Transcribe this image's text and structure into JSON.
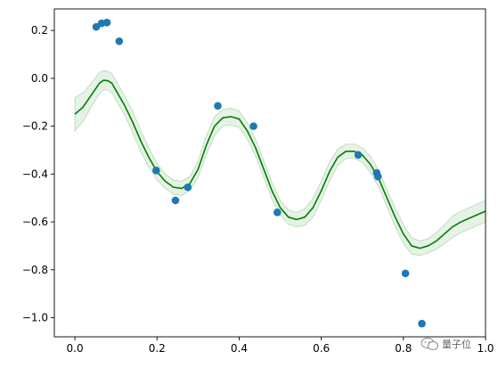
{
  "chart_data": {
    "type": "line",
    "title": "",
    "xlabel": "",
    "ylabel": "",
    "xlim": [
      -0.05,
      1.0
    ],
    "ylim": [
      -1.08,
      0.29
    ],
    "grid": false,
    "legend": "none",
    "x_ticks": [
      0.0,
      0.2,
      0.4,
      0.6,
      0.8,
      1.0
    ],
    "x_tick_labels": [
      "0.0",
      "0.2",
      "0.4",
      "0.6",
      "0.8",
      "1.0"
    ],
    "y_ticks": [
      0.2,
      0.0,
      -0.2,
      -0.4,
      -0.6,
      -0.8,
      -1.0
    ],
    "y_tick_labels": [
      "0.2",
      "0.0",
      "−0.2",
      "−0.4",
      "−0.6",
      "−0.8",
      "−1.0"
    ],
    "mean_curve": {
      "color": "#008000",
      "x": [
        0.0,
        0.02,
        0.04,
        0.06,
        0.07,
        0.08,
        0.09,
        0.1,
        0.12,
        0.14,
        0.16,
        0.18,
        0.2,
        0.22,
        0.24,
        0.26,
        0.28,
        0.3,
        0.32,
        0.34,
        0.36,
        0.38,
        0.4,
        0.42,
        0.44,
        0.46,
        0.48,
        0.5,
        0.52,
        0.54,
        0.56,
        0.58,
        0.6,
        0.62,
        0.64,
        0.66,
        0.68,
        0.7,
        0.72,
        0.74,
        0.76,
        0.78,
        0.8,
        0.82,
        0.84,
        0.86,
        0.88,
        0.9,
        0.92,
        0.94,
        0.96,
        0.98,
        1.0
      ],
      "y": [
        -0.15,
        -0.12,
        -0.07,
        -0.02,
        -0.008,
        -0.01,
        -0.02,
        -0.05,
        -0.11,
        -0.18,
        -0.26,
        -0.33,
        -0.39,
        -0.43,
        -0.455,
        -0.46,
        -0.44,
        -0.38,
        -0.28,
        -0.2,
        -0.165,
        -0.16,
        -0.17,
        -0.22,
        -0.29,
        -0.38,
        -0.47,
        -0.54,
        -0.58,
        -0.59,
        -0.58,
        -0.54,
        -0.47,
        -0.39,
        -0.33,
        -0.305,
        -0.305,
        -0.32,
        -0.36,
        -0.42,
        -0.5,
        -0.58,
        -0.65,
        -0.7,
        -0.71,
        -0.7,
        -0.68,
        -0.65,
        -0.62,
        -0.6,
        -0.585,
        -0.57,
        -0.555
      ],
      "band_halfwidth": [
        0.07,
        0.06,
        0.05,
        0.045,
        0.04,
        0.04,
        0.04,
        0.04,
        0.04,
        0.045,
        0.045,
        0.04,
        0.035,
        0.03,
        0.03,
        0.03,
        0.03,
        0.035,
        0.04,
        0.04,
        0.035,
        0.035,
        0.035,
        0.035,
        0.035,
        0.035,
        0.035,
        0.03,
        0.03,
        0.03,
        0.035,
        0.04,
        0.04,
        0.04,
        0.035,
        0.03,
        0.03,
        0.03,
        0.035,
        0.035,
        0.035,
        0.04,
        0.04,
        0.035,
        0.03,
        0.03,
        0.035,
        0.04,
        0.045,
        0.045,
        0.045,
        0.045,
        0.045
      ],
      "band_color": "#008000",
      "band_opacity": 0.1
    },
    "scatter": {
      "color": "#1f77b4",
      "points": [
        {
          "x": 0.052,
          "y": 0.215
        },
        {
          "x": 0.065,
          "y": 0.23
        },
        {
          "x": 0.078,
          "y": 0.233
        },
        {
          "x": 0.108,
          "y": 0.155
        },
        {
          "x": 0.198,
          "y": -0.385
        },
        {
          "x": 0.245,
          "y": -0.51
        },
        {
          "x": 0.275,
          "y": -0.455
        },
        {
          "x": 0.348,
          "y": -0.115
        },
        {
          "x": 0.435,
          "y": -0.2
        },
        {
          "x": 0.493,
          "y": -0.56
        },
        {
          "x": 0.69,
          "y": -0.32
        },
        {
          "x": 0.735,
          "y": -0.395
        },
        {
          "x": 0.738,
          "y": -0.41
        },
        {
          "x": 0.805,
          "y": -0.815
        },
        {
          "x": 0.845,
          "y": -1.025
        }
      ]
    }
  },
  "watermark": {
    "text": "量子位",
    "icon": "wechat-icon"
  }
}
